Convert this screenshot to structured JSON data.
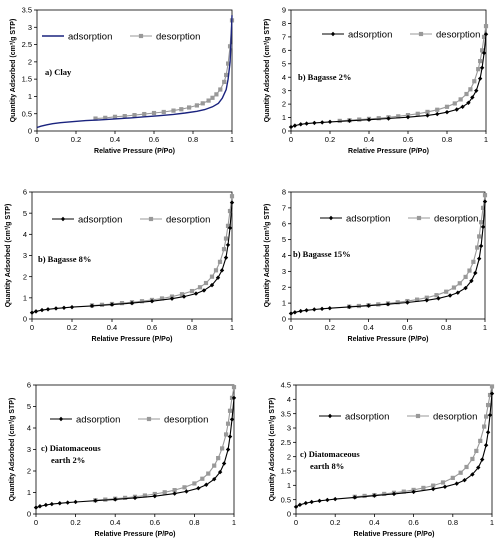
{
  "chart_data": [
    {
      "type": "line",
      "panel_label": "a) Clay",
      "xlabel": "Relative Pressure (P/Po)",
      "ylabel": "Quantity Adsorbed (cm³/g STP)",
      "xlim": [
        0,
        1
      ],
      "ylim": [
        0,
        3.5
      ],
      "xticks": [
        "0",
        "0.2",
        "0.4",
        "0.6",
        "0.8",
        "1"
      ],
      "yticks": [
        "0",
        "0.5",
        "1",
        "1.5",
        "2",
        "2.5",
        "3",
        "3.5"
      ],
      "legend": [
        "adsorption",
        "desorption"
      ],
      "series": [
        {
          "name": "adsorption",
          "color": "#1a237e",
          "marker": "none",
          "x": [
            0.0,
            0.02,
            0.05,
            0.08,
            0.12,
            0.18,
            0.25,
            0.32,
            0.4,
            0.48,
            0.55,
            0.62,
            0.7,
            0.76,
            0.82,
            0.86,
            0.9,
            0.93,
            0.95,
            0.97,
            0.98,
            0.99,
            0.995,
            1.0
          ],
          "y": [
            0.1,
            0.14,
            0.18,
            0.21,
            0.24,
            0.27,
            0.3,
            0.32,
            0.35,
            0.38,
            0.41,
            0.44,
            0.48,
            0.52,
            0.57,
            0.62,
            0.7,
            0.8,
            0.95,
            1.2,
            1.5,
            2.0,
            2.6,
            3.35
          ]
        },
        {
          "name": "desorption",
          "color": "#999999",
          "marker": "square",
          "x": [
            0.3,
            0.35,
            0.4,
            0.45,
            0.5,
            0.55,
            0.6,
            0.65,
            0.7,
            0.74,
            0.78,
            0.82,
            0.85,
            0.88,
            0.9,
            0.92,
            0.94,
            0.96,
            0.97,
            0.98,
            0.99,
            1.0
          ],
          "y": [
            0.36,
            0.38,
            0.41,
            0.43,
            0.46,
            0.49,
            0.52,
            0.55,
            0.59,
            0.63,
            0.68,
            0.74,
            0.8,
            0.88,
            0.96,
            1.06,
            1.2,
            1.42,
            1.62,
            1.95,
            2.45,
            3.2
          ]
        }
      ]
    },
    {
      "type": "line",
      "panel_label": "b) Bagasse 2%",
      "xlabel": "Relative Pressure (P/Po)",
      "ylabel": "Quantity Adsorbed (cm³/g STP)",
      "xlim": [
        0,
        1
      ],
      "ylim": [
        0,
        9
      ],
      "xticks": [
        "0",
        "0.2",
        "0.4",
        "0.6",
        "0.8",
        "1"
      ],
      "yticks": [
        "0",
        "1",
        "2",
        "3",
        "4",
        "5",
        "6",
        "7",
        "8",
        "9"
      ],
      "legend": [
        "adsorption",
        "desorption"
      ],
      "series": [
        {
          "name": "adsorption",
          "color": "#000000",
          "marker": "diamond",
          "x": [
            0.0,
            0.02,
            0.05,
            0.08,
            0.12,
            0.16,
            0.2,
            0.3,
            0.4,
            0.5,
            0.6,
            0.7,
            0.75,
            0.8,
            0.85,
            0.88,
            0.91,
            0.93,
            0.95,
            0.97,
            0.98,
            0.99,
            1.0
          ],
          "y": [
            0.3,
            0.4,
            0.5,
            0.55,
            0.6,
            0.64,
            0.68,
            0.76,
            0.84,
            0.93,
            1.03,
            1.16,
            1.26,
            1.4,
            1.6,
            1.8,
            2.1,
            2.5,
            3.0,
            3.9,
            4.7,
            5.8,
            7.2
          ]
        },
        {
          "name": "desorption",
          "color": "#999999",
          "marker": "square",
          "x": [
            0.25,
            0.3,
            0.35,
            0.4,
            0.45,
            0.5,
            0.55,
            0.6,
            0.65,
            0.7,
            0.75,
            0.8,
            0.84,
            0.87,
            0.9,
            0.92,
            0.94,
            0.96,
            0.97,
            0.98,
            0.99,
            1.0
          ],
          "y": [
            0.75,
            0.8,
            0.85,
            0.9,
            0.95,
            1.02,
            1.09,
            1.18,
            1.28,
            1.42,
            1.58,
            1.8,
            2.05,
            2.35,
            2.75,
            3.1,
            3.7,
            4.6,
            5.2,
            6.0,
            7.0,
            7.8
          ]
        }
      ]
    },
    {
      "type": "line",
      "panel_label": "b) Bagasse 8%",
      "xlabel": "Relative Pressure (P/Po)",
      "ylabel": "Quantity Adsorbed (cm³/g STP)",
      "xlim": [
        0,
        1
      ],
      "ylim": [
        0,
        6
      ],
      "xticks": [
        "0",
        "0.2",
        "0.4",
        "0.6",
        "0.8",
        "1"
      ],
      "yticks": [
        "0",
        "1",
        "2",
        "3",
        "4",
        "5",
        "6"
      ],
      "legend": [
        "adsorption",
        "desorption"
      ],
      "series": [
        {
          "name": "adsorption",
          "color": "#000000",
          "marker": "diamond",
          "x": [
            0.0,
            0.02,
            0.05,
            0.08,
            0.12,
            0.16,
            0.2,
            0.3,
            0.4,
            0.5,
            0.6,
            0.7,
            0.76,
            0.82,
            0.86,
            0.9,
            0.93,
            0.95,
            0.97,
            0.98,
            0.99,
            1.0
          ],
          "y": [
            0.3,
            0.36,
            0.42,
            0.46,
            0.5,
            0.53,
            0.56,
            0.62,
            0.68,
            0.75,
            0.84,
            0.96,
            1.06,
            1.2,
            1.35,
            1.6,
            1.95,
            2.3,
            2.9,
            3.5,
            4.3,
            5.5
          ]
        },
        {
          "name": "desorption",
          "color": "#999999",
          "marker": "square",
          "x": [
            0.3,
            0.35,
            0.4,
            0.45,
            0.5,
            0.55,
            0.6,
            0.65,
            0.7,
            0.75,
            0.8,
            0.84,
            0.87,
            0.9,
            0.92,
            0.94,
            0.96,
            0.97,
            0.98,
            0.99,
            1.0
          ],
          "y": [
            0.64,
            0.67,
            0.71,
            0.75,
            0.79,
            0.84,
            0.9,
            0.97,
            1.06,
            1.17,
            1.32,
            1.5,
            1.7,
            2.0,
            2.3,
            2.7,
            3.3,
            3.8,
            4.4,
            5.1,
            5.8
          ]
        }
      ]
    },
    {
      "type": "line",
      "panel_label": "b) Bagasse 15%",
      "xlabel": "Relative Pressure (P/Po)",
      "ylabel": "Quantity Adsorbed (cm³/g STP)",
      "xlim": [
        0,
        1
      ],
      "ylim": [
        0,
        8
      ],
      "xticks": [
        "0",
        "0.2",
        "0.4",
        "0.6",
        "0.8",
        "1"
      ],
      "yticks": [
        "0",
        "1",
        "2",
        "3",
        "4",
        "5",
        "6",
        "7",
        "8"
      ],
      "legend": [
        "adsorption",
        "desorption"
      ],
      "series": [
        {
          "name": "adsorption",
          "color": "#000000",
          "marker": "diamond",
          "x": [
            0.0,
            0.02,
            0.05,
            0.08,
            0.12,
            0.16,
            0.2,
            0.3,
            0.4,
            0.5,
            0.6,
            0.7,
            0.76,
            0.82,
            0.86,
            0.9,
            0.93,
            0.95,
            0.97,
            0.98,
            0.99,
            1.0
          ],
          "y": [
            0.35,
            0.42,
            0.5,
            0.55,
            0.6,
            0.64,
            0.68,
            0.76,
            0.84,
            0.93,
            1.04,
            1.18,
            1.3,
            1.48,
            1.66,
            1.95,
            2.4,
            2.9,
            3.8,
            4.6,
            5.8,
            7.4
          ]
        },
        {
          "name": "desorption",
          "color": "#999999",
          "marker": "square",
          "x": [
            0.3,
            0.35,
            0.4,
            0.45,
            0.5,
            0.55,
            0.6,
            0.65,
            0.7,
            0.75,
            0.8,
            0.84,
            0.87,
            0.9,
            0.92,
            0.94,
            0.96,
            0.97,
            0.98,
            0.99,
            1.0
          ],
          "y": [
            0.78,
            0.82,
            0.87,
            0.92,
            0.98,
            1.05,
            1.13,
            1.22,
            1.34,
            1.5,
            1.72,
            1.98,
            2.25,
            2.65,
            3.05,
            3.6,
            4.5,
            5.2,
            6.1,
            7.0,
            7.8
          ]
        }
      ]
    },
    {
      "type": "line",
      "panel_label_lines": [
        "c) Diatomaceous",
        "earth 2%"
      ],
      "xlabel": "Relative Pressure (P/Po)",
      "ylabel": "Quantity Adsorbed (cm³/g STP)",
      "xlim": [
        0,
        1
      ],
      "ylim": [
        0,
        6
      ],
      "xticks": [
        "0",
        "0.2",
        "0.4",
        "0.6",
        "0.8",
        "1"
      ],
      "yticks": [
        "0",
        "1",
        "2",
        "3",
        "4",
        "5",
        "6"
      ],
      "legend": [
        "adsorption",
        "desorption"
      ],
      "series": [
        {
          "name": "adsorption",
          "color": "#000000",
          "marker": "diamond",
          "x": [
            0.0,
            0.02,
            0.05,
            0.08,
            0.12,
            0.16,
            0.2,
            0.3,
            0.4,
            0.5,
            0.6,
            0.7,
            0.76,
            0.82,
            0.86,
            0.9,
            0.93,
            0.95,
            0.97,
            0.98,
            0.99,
            1.0
          ],
          "y": [
            0.3,
            0.36,
            0.42,
            0.46,
            0.5,
            0.53,
            0.56,
            0.62,
            0.68,
            0.75,
            0.83,
            0.95,
            1.05,
            1.2,
            1.36,
            1.62,
            1.95,
            2.35,
            3.0,
            3.6,
            4.4,
            5.4
          ]
        },
        {
          "name": "desorption",
          "color": "#999999",
          "marker": "square",
          "x": [
            0.3,
            0.35,
            0.4,
            0.45,
            0.5,
            0.55,
            0.6,
            0.65,
            0.7,
            0.75,
            0.8,
            0.84,
            0.87,
            0.9,
            0.92,
            0.94,
            0.96,
            0.97,
            0.98,
            0.99,
            1.0
          ],
          "y": [
            0.64,
            0.67,
            0.71,
            0.75,
            0.8,
            0.86,
            0.93,
            1.01,
            1.11,
            1.24,
            1.42,
            1.64,
            1.88,
            2.25,
            2.6,
            3.05,
            3.7,
            4.2,
            4.8,
            5.4,
            5.9
          ]
        }
      ]
    },
    {
      "type": "line",
      "panel_label_lines": [
        "c) Diatomaceous",
        "earth 8%"
      ],
      "xlabel": "Relative Pressure (P/Po)",
      "ylabel": "Quantity Adsorbed (cm³/g STP)",
      "xlim": [
        0,
        1
      ],
      "ylim": [
        0,
        4.5
      ],
      "xticks": [
        "0",
        "0.2",
        "0.4",
        "0.6",
        "0.8",
        "1"
      ],
      "yticks": [
        "0",
        "0.5",
        "1",
        "1.5",
        "2",
        "2.5",
        "3",
        "3.5",
        "4",
        "4.5"
      ],
      "legend": [
        "adsorption",
        "desorption"
      ],
      "series": [
        {
          "name": "adsorption",
          "color": "#000000",
          "marker": "diamond",
          "x": [
            0.0,
            0.02,
            0.05,
            0.08,
            0.12,
            0.16,
            0.2,
            0.3,
            0.4,
            0.5,
            0.6,
            0.7,
            0.76,
            0.82,
            0.86,
            0.9,
            0.93,
            0.95,
            0.97,
            0.98,
            0.99,
            1.0
          ],
          "y": [
            0.25,
            0.32,
            0.38,
            0.42,
            0.46,
            0.49,
            0.52,
            0.58,
            0.64,
            0.7,
            0.77,
            0.87,
            0.95,
            1.06,
            1.18,
            1.38,
            1.62,
            1.9,
            2.4,
            2.85,
            3.45,
            4.2
          ]
        },
        {
          "name": "desorption",
          "color": "#999999",
          "marker": "square",
          "x": [
            0.3,
            0.35,
            0.4,
            0.45,
            0.5,
            0.55,
            0.6,
            0.65,
            0.7,
            0.75,
            0.8,
            0.84,
            0.87,
            0.9,
            0.92,
            0.94,
            0.96,
            0.97,
            0.98,
            0.99,
            1.0
          ],
          "y": [
            0.6,
            0.63,
            0.66,
            0.7,
            0.74,
            0.78,
            0.84,
            0.91,
            0.99,
            1.1,
            1.26,
            1.44,
            1.64,
            1.92,
            2.2,
            2.55,
            3.05,
            3.4,
            3.8,
            4.15,
            4.45
          ]
        }
      ]
    }
  ]
}
